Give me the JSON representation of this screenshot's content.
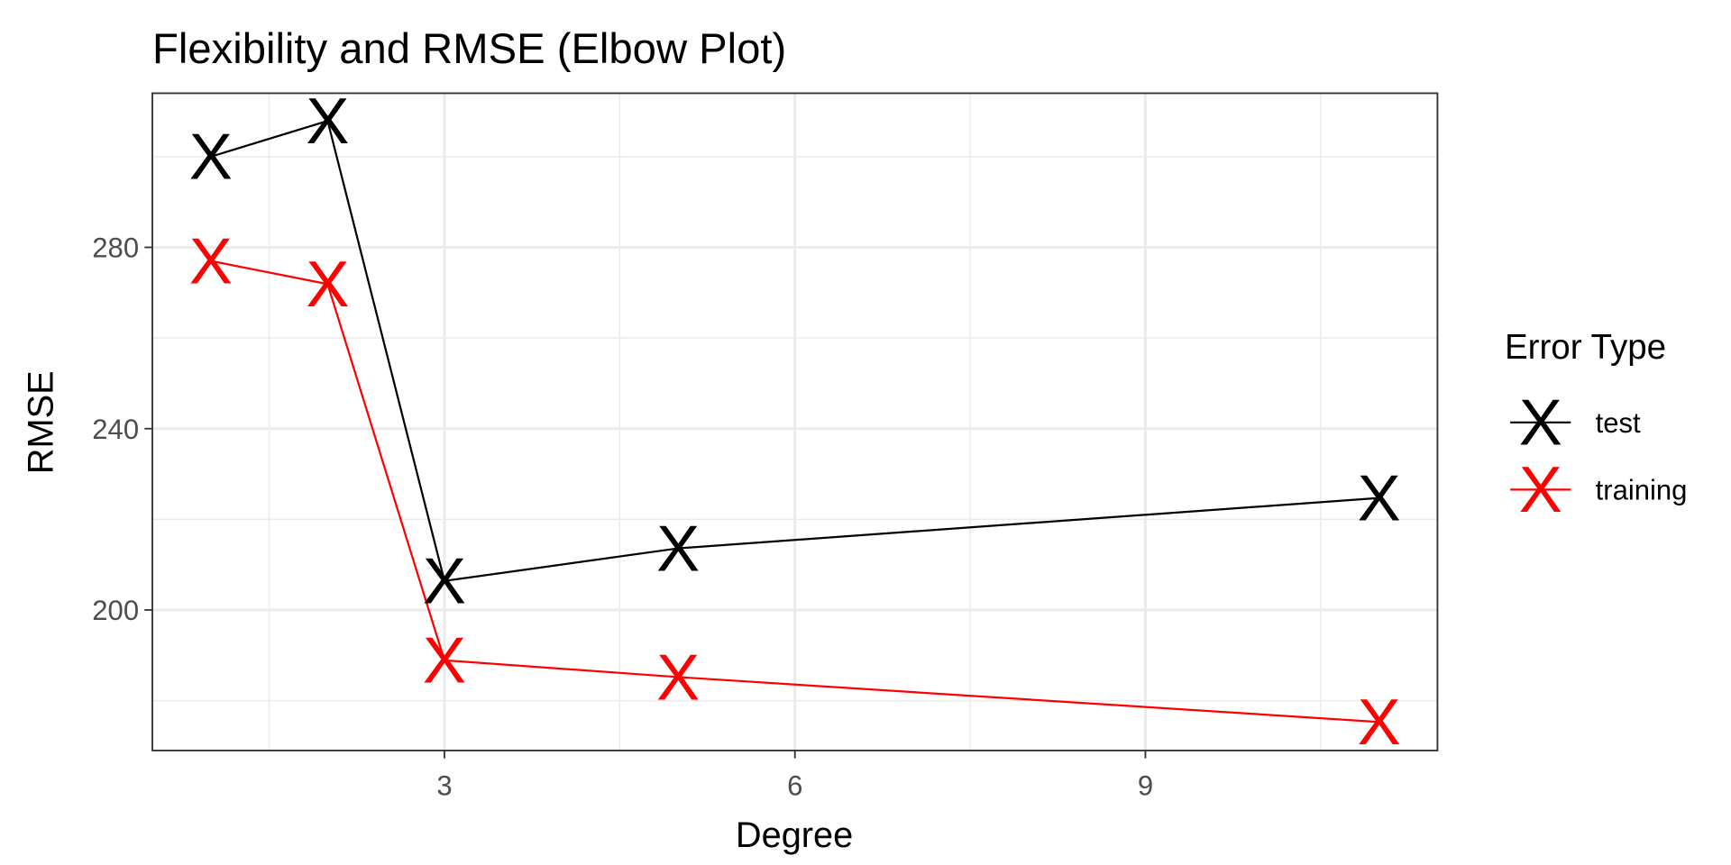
{
  "chart_data": {
    "type": "line",
    "title": "Flexibility and RMSE (Elbow Plot)",
    "xlabel": "Degree",
    "ylabel": "RMSE",
    "xlim": [
      0.5,
      11.5
    ],
    "ylim": [
      169,
      314
    ],
    "x_ticks": [
      3,
      6,
      9
    ],
    "x_tick_labels": [
      "3",
      "6",
      "9"
    ],
    "x_minor": [
      1.5,
      4.5,
      7.5,
      10.5
    ],
    "y_ticks": [
      200,
      240,
      280
    ],
    "y_tick_labels": [
      "200",
      "240",
      "280"
    ],
    "y_minor": [
      180,
      220,
      260,
      300
    ],
    "grid": true,
    "legend": {
      "title": "Error Type",
      "placement": "right"
    },
    "marker": "X",
    "series": [
      {
        "name": "test",
        "color": "#000000",
        "x": [
          1,
          2,
          3,
          5,
          11
        ],
        "y": [
          300.0,
          307.9,
          206.4,
          213.6,
          224.7
        ]
      },
      {
        "name": "training",
        "color": "#ff0000",
        "x": [
          1,
          2,
          3,
          5,
          11
        ],
        "y": [
          277.0,
          271.9,
          188.9,
          185.2,
          175.3
        ]
      }
    ]
  }
}
